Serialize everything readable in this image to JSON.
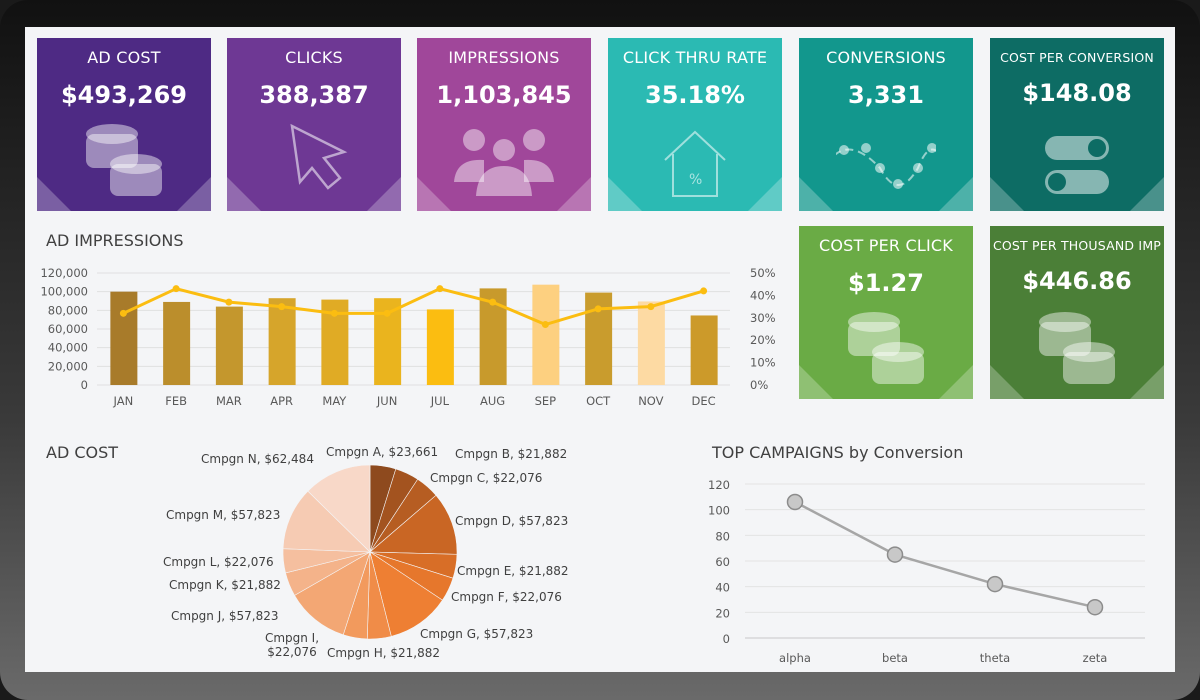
{
  "kpis": [
    {
      "title": "AD COST",
      "value": "$493,269",
      "icon": "coins-icon",
      "color": "#4e2a84"
    },
    {
      "title": "CLICKS",
      "value": "388,387",
      "icon": "cursor-icon",
      "color": "#6e3894"
    },
    {
      "title": "IMPRESSIONS",
      "value": "1,103,845",
      "icon": "people-icon",
      "color": "#a0479a"
    },
    {
      "title": "CLICK THRU RATE",
      "value": "35.18%",
      "icon": "house-percent-icon",
      "color": "#2bbab3"
    },
    {
      "title": "CONVERSIONS",
      "value": "3,331",
      "icon": "wave-icon",
      "color": "#12978d"
    },
    {
      "title": "COST PER CONVERSION",
      "value": "$148.08",
      "icon": "toggle-icon",
      "color": "#0d6c64"
    },
    {
      "title": "COST PER CLICK",
      "value": "$1.27",
      "icon": "coins-icon",
      "color": "#6aab45"
    },
    {
      "title": "COST PER THOUSAND IMP",
      "value": "$446.86",
      "icon": "coins-icon",
      "color": "#4b7f37"
    }
  ],
  "chart_data": [
    {
      "type": "bar",
      "title": "AD IMPRESSIONS",
      "categories": [
        "JAN",
        "FEB",
        "MAR",
        "APR",
        "MAY",
        "JUN",
        "JUL",
        "AUG",
        "SEP",
        "OCT",
        "NOV",
        "DEC"
      ],
      "series": [
        {
          "type": "bar",
          "axis": "left",
          "values": [
            100000,
            89000,
            84000,
            93000,
            91500,
            93000,
            81000,
            103500,
            107500,
            99000,
            89500,
            74500
          ],
          "colors": [
            "#a87b2a",
            "#bb8e2c",
            "#c4972d",
            "#d6a52b",
            "#e0ab25",
            "#eab41e",
            "#fbbd11",
            "#c89a2c",
            "#fdd080",
            "#c99c2d",
            "#fddaa3",
            "#cc9a2a"
          ]
        },
        {
          "type": "line",
          "axis": "right",
          "values": [
            32,
            43,
            37,
            35,
            32,
            32,
            43,
            37,
            27,
            34,
            35,
            42
          ],
          "color": "#fbbd11"
        }
      ],
      "ylim": [
        0,
        120000
      ],
      "yticks": [
        "0",
        "20,000",
        "40,000",
        "60,000",
        "80,000",
        "100,000",
        "120,000"
      ],
      "y2lim": [
        0,
        50
      ],
      "y2ticks": [
        "0%",
        "10%",
        "20%",
        "30%",
        "40%",
        "50%"
      ],
      "grid": true
    },
    {
      "type": "pie",
      "title": "AD COST",
      "labels": [
        "Cmpgn A, $23,661",
        "Cmpgn B, $21,882",
        "Cmpgn C, $22,076",
        "Cmpgn D, $57,823",
        "Cmpgn E, $21,882",
        "Cmpgn F, $22,076",
        "Cmpgn G, $57,823",
        "Cmpgn H, $21,882",
        "Cmpgn I, $22,076",
        "Cmpgn J, $57,823",
        "Cmpgn K, $21,882",
        "Cmpgn L, $22,076",
        "Cmpgn M, $57,823",
        "Cmpgn N, $62,484"
      ],
      "values": [
        23661,
        21882,
        22076,
        57823,
        21882,
        22076,
        57823,
        21882,
        22076,
        57823,
        21882,
        22076,
        57823,
        62484
      ],
      "colors": [
        "#8e4a1e",
        "#a3531f",
        "#b65d22",
        "#c96624",
        "#d86e27",
        "#e6772c",
        "#ee7f33",
        "#f08c48",
        "#f29a5d",
        "#f3a774",
        "#f4b38a",
        "#f5bf9f",
        "#f6cbb3",
        "#f8d8c8"
      ]
    },
    {
      "type": "line",
      "title": "TOP CAMPAIGNS by Conversion",
      "categories": [
        "alpha",
        "beta",
        "theta",
        "zeta"
      ],
      "values": [
        106,
        65,
        42,
        24
      ],
      "ylim": [
        0,
        120
      ],
      "yticks": [
        "0",
        "20",
        "40",
        "60",
        "80",
        "100",
        "120"
      ],
      "grid": true,
      "color": "#a6a6a6"
    }
  ]
}
